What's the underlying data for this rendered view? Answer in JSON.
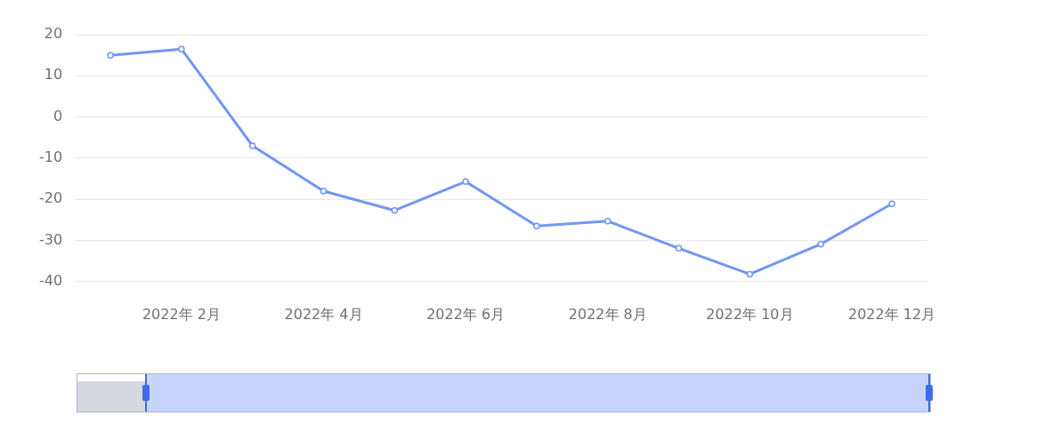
{
  "chart_data": {
    "type": "line",
    "categories": [
      null,
      "2022年 2月",
      null,
      "2022年 4月",
      null,
      "2022年 6月",
      null,
      "2022年 8月",
      null,
      "2022年 10月",
      null,
      "2022年 12月"
    ],
    "series": [
      {
        "color": "#7396f5",
        "values": [
          15,
          16.5,
          -7,
          -18,
          -22.7,
          -15.7,
          -26.5,
          -25.3,
          -31.9,
          -38.2,
          -30.9,
          -21.1
        ]
      }
    ],
    "ylim": [
      -40,
      20
    ],
    "yticks": [
      -40,
      -30,
      -20,
      -10,
      0,
      10,
      20
    ],
    "grid": "y",
    "legend": false,
    "marker": "circle",
    "line_style": "solid"
  }
}
